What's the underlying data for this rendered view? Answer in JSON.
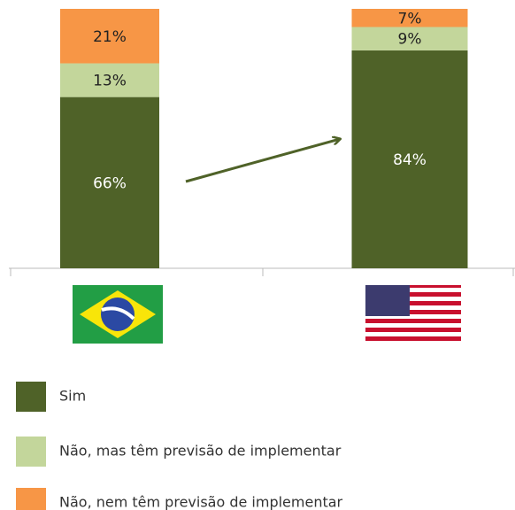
{
  "chart_data": {
    "type": "stacked-bar",
    "categories": [
      null,
      null
    ],
    "series": [
      {
        "name": "Sim",
        "color": "#4f6228",
        "values": [
          66,
          84
        ],
        "value_labels": [
          "66%",
          "84%"
        ]
      },
      {
        "name": "Não, mas têm previsão de implementar",
        "color": "#c3d69b",
        "values": [
          13,
          9
        ],
        "value_labels": [
          "13%",
          "9%"
        ]
      },
      {
        "name": "Não, nem têm previsão de implementar",
        "color": "#f79646",
        "values": [
          21,
          7
        ],
        "value_labels": [
          "21%",
          "7%"
        ]
      }
    ],
    "ylim": [
      0,
      100
    ]
  }
}
